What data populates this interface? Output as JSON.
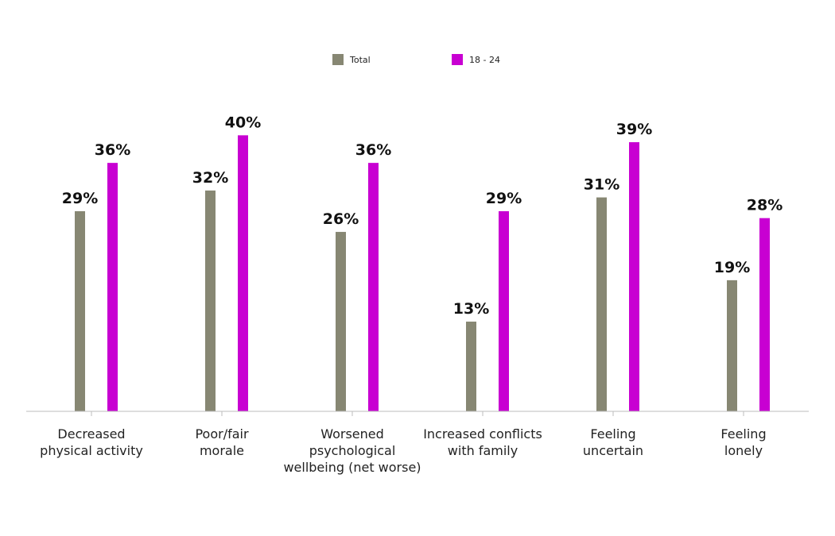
{
  "chart_data": {
    "type": "bar",
    "title": "",
    "xlabel": "",
    "ylabel": "",
    "ylim": [
      0,
      42
    ],
    "grid": false,
    "legend_placement": "top-center",
    "value_suffix": "%",
    "categories": [
      [
        "Decreased",
        "physical activity"
      ],
      [
        "Poor/fair",
        "morale"
      ],
      [
        "Worsened",
        "psychological",
        "wellbeing (net worse)"
      ],
      [
        "Increased conflicts",
        "with family"
      ],
      [
        "Feeling",
        "uncertain"
      ],
      [
        "Feeling",
        "lonely"
      ]
    ],
    "series": [
      {
        "name": "Total",
        "color": "#878773",
        "values": [
          29,
          32,
          26,
          13,
          31,
          19
        ]
      },
      {
        "name": "18 - 24",
        "color": "#c800d2",
        "values": [
          36,
          40,
          36,
          29,
          39,
          28
        ]
      }
    ]
  }
}
